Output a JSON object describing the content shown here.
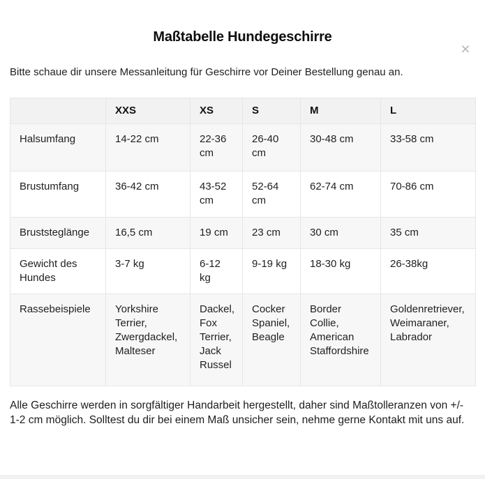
{
  "modal": {
    "title": "Maßtabelle Hundegeschirre",
    "subtitle": "Bitte schaue dir unsere Messanleitung für Geschirre vor Deiner Bestellung genau an.",
    "close_icon": "×",
    "footer": "Alle Geschirre werden in sorgfältiger Handarbeit hergestellt, daher sind Maßtolleranzen von +/- 1-2 cm möglich. Solltest du dir bei einem Maß unsicher sein, nehme gerne Kontakt mit uns auf."
  },
  "table": {
    "columns": [
      "",
      "XXS",
      "XS",
      "S",
      "M",
      "L"
    ],
    "rows": [
      {
        "label": "Halsumfang",
        "values": [
          "14-22 cm",
          "22-36 cm",
          "26-40 cm",
          "30-48 cm",
          "33-58 cm"
        ]
      },
      {
        "label": "Brustumfang",
        "values": [
          "36-42 cm",
          "43-52 cm",
          "52-64 cm",
          "62-74 cm",
          "70-86 cm"
        ]
      },
      {
        "label": "Bruststeglänge",
        "values": [
          "16,5 cm",
          "19 cm",
          "23 cm",
          "30 cm",
          "35 cm"
        ]
      },
      {
        "label": "Gewicht des Hundes",
        "values": [
          "3-7 kg",
          "6-12 kg",
          "9-19 kg",
          "18-30 kg",
          "26-38kg"
        ]
      },
      {
        "label": "Rassebeispiele",
        "values": [
          "Yorkshire Terrier, Zwergdackel, Malteser",
          "Dackel, Fox Terrier, Jack Russel",
          "Cocker Spaniel, Beagle",
          "Border Collie, American Staffordshire",
          "Goldenretriever, Weimaraner, Labrador"
        ]
      }
    ]
  },
  "colors": {
    "row_stripe": "#f7f7f7",
    "header_bg": "#f2f2f2",
    "border": "#e6e6e6",
    "close_icon": "#b6b6b6"
  }
}
